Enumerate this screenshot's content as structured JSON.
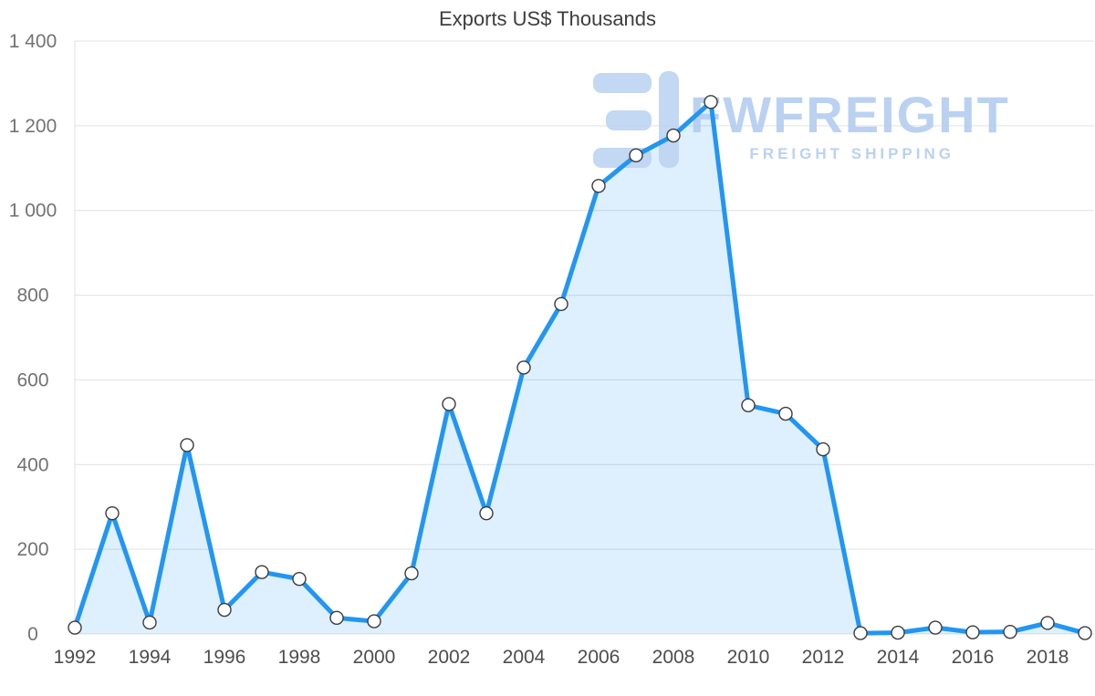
{
  "title": "Exports US$ Thousands",
  "watermark": {
    "brand": "FWFREIGHT",
    "tagline": "FREIGHT SHIPPING",
    "color": "#b3cdf0",
    "logo_color": "#bdd4f2"
  },
  "chart_data": {
    "type": "area",
    "title": "Exports US$ Thousands",
    "xlabel": "",
    "ylabel": "US$ Thousands",
    "x": [
      1992,
      1993,
      1994,
      1995,
      1996,
      1997,
      1998,
      1999,
      2000,
      2001,
      2002,
      2003,
      2004,
      2005,
      2006,
      2007,
      2008,
      2009,
      2010,
      2011,
      2012,
      2013,
      2014,
      2015,
      2016,
      2017,
      2018,
      2019
    ],
    "series": [
      {
        "name": "Exports",
        "values": [
          15,
          285,
          27,
          446,
          57,
          146,
          130,
          38,
          30,
          143,
          543,
          285,
          629,
          779,
          1058,
          1130,
          1177,
          1256,
          540,
          520,
          436,
          2,
          3,
          15,
          4,
          5,
          26,
          2
        ]
      }
    ],
    "ylim": [
      0,
      1400
    ],
    "ytick_labels": [
      "0",
      "200",
      "400",
      "600",
      "800",
      "1 000",
      "1 200",
      "1 400"
    ],
    "xticks": [
      1992,
      1994,
      1996,
      1998,
      2000,
      2002,
      2004,
      2006,
      2008,
      2010,
      2012,
      2014,
      2016,
      2018
    ],
    "grid": true,
    "legend_position": "none",
    "line_color": "#2196f3",
    "fill_color": "rgba(33,150,243,0.15)",
    "marker_fill": "#ffffff",
    "marker_stroke": "#3b3b3b"
  }
}
